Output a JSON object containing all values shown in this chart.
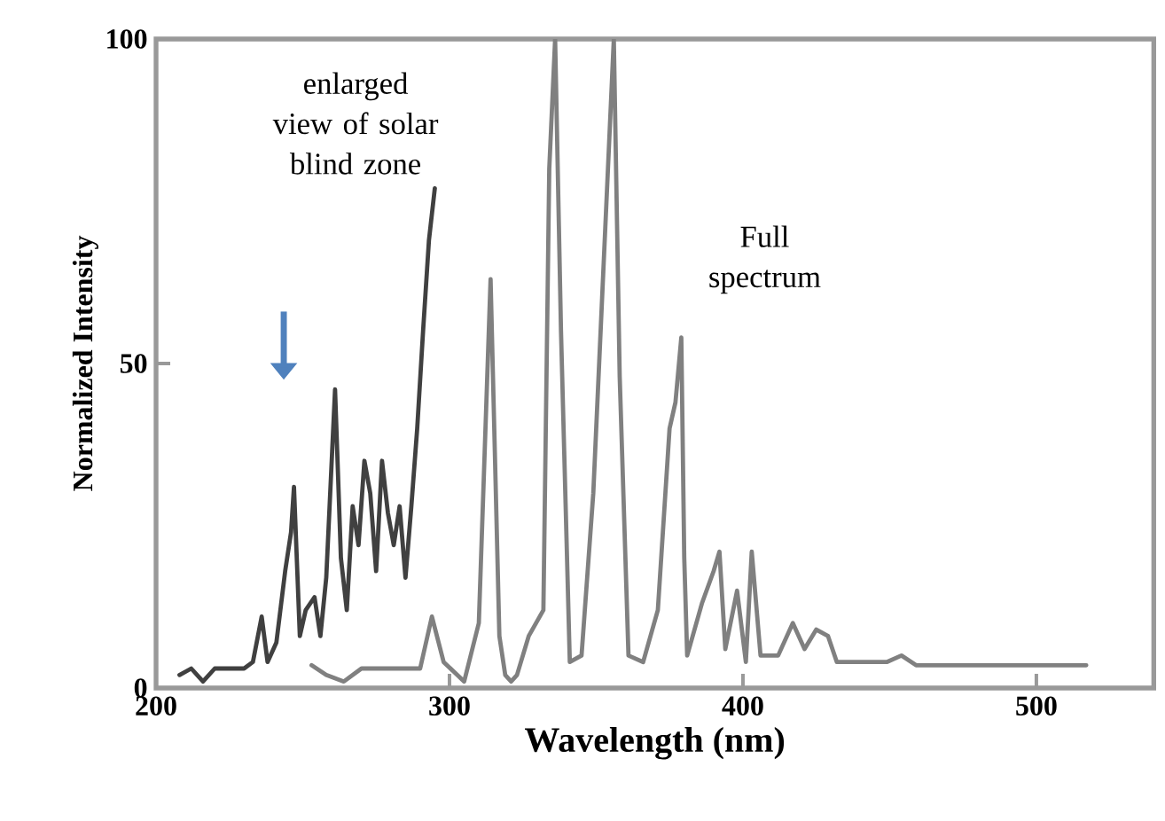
{
  "chart_data": {
    "type": "line",
    "xlabel": "Wavelength (nm)",
    "ylabel": "Normalized Intensity",
    "xlim": [
      200,
      540
    ],
    "ylim": [
      0,
      100
    ],
    "xticks": [
      200,
      300,
      400,
      500
    ],
    "yticks": [
      0,
      50,
      100
    ],
    "series": [
      {
        "name": "enlarged view of solar blind zone",
        "color": "#404040",
        "x": [
          208,
          212,
          216,
          220,
          225,
          230,
          233,
          236,
          238,
          241,
          244,
          246,
          247,
          249,
          251,
          254,
          256,
          258,
          261,
          263,
          265,
          267,
          269,
          271,
          273,
          275,
          277,
          279,
          281,
          283,
          285,
          287,
          289,
          291,
          293,
          295
        ],
        "values": [
          2,
          3,
          1,
          3,
          3,
          3,
          4,
          11,
          4,
          7,
          18,
          24,
          31,
          8,
          12,
          14,
          8,
          17,
          46,
          20,
          12,
          28,
          22,
          35,
          30,
          18,
          35,
          27,
          22,
          28,
          17,
          28,
          40,
          55,
          69,
          77
        ]
      },
      {
        "name": "Full spectrum",
        "color": "#808080",
        "x": [
          253,
          258,
          264,
          270,
          280,
          290,
          294,
          298,
          305,
          310,
          314,
          317,
          319,
          321,
          323,
          327,
          332,
          334,
          336,
          338,
          341,
          345,
          349,
          352,
          356,
          358,
          361,
          366,
          371,
          375,
          377,
          379,
          380,
          381,
          386,
          390,
          392,
          394,
          398,
          401,
          403,
          406,
          412,
          417,
          421,
          425,
          429,
          432,
          440,
          449,
          454,
          459,
          517
        ],
        "values": [
          3.5,
          2,
          1,
          3,
          3,
          3,
          11,
          4,
          1,
          10,
          63,
          8,
          2,
          1,
          2,
          8,
          12,
          80,
          100,
          55,
          4,
          5,
          30,
          60,
          100,
          48,
          5,
          4,
          12,
          40,
          44,
          54,
          20,
          5,
          13,
          18,
          21,
          6,
          15,
          4,
          21,
          5,
          5,
          10,
          6,
          9,
          8,
          4,
          4,
          4,
          5,
          3.5,
          3.5
        ]
      }
    ]
  }
}
